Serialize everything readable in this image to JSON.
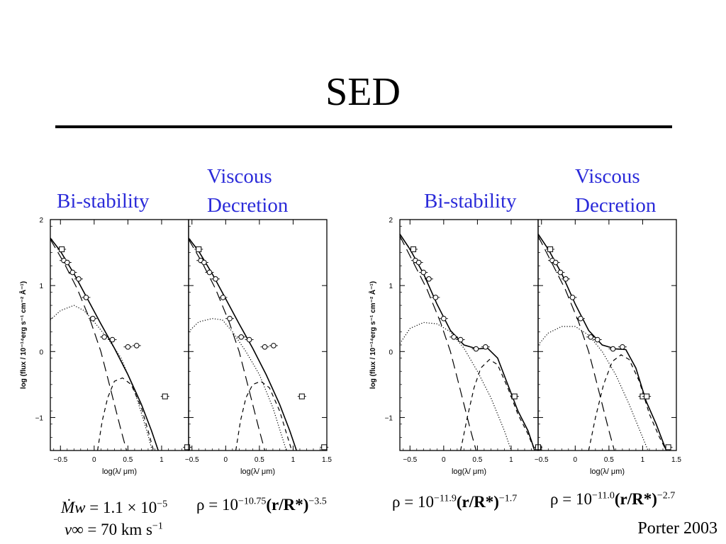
{
  "slide": {
    "title": "SED",
    "credit": "Porter 2003"
  },
  "labels": {
    "left_bistab": "Bi-stability",
    "left_visc_1": "Viscous",
    "left_visc_2": "Decretion",
    "right_bistab": "Bi-stability",
    "right_visc_1": "Viscous",
    "right_visc_2": "Decretion"
  },
  "formulas": {
    "mdot_lhs": "Ṁw",
    "mdot_rhs": "= 1.1 × 10",
    "mdot_exp": "−5",
    "vinf_lhs": "v∞",
    "vinf_rhs": "= 70 km s",
    "vinf_exp": "−1",
    "rho1_a": "ρ = 10",
    "rho1_exp1": "−10.75",
    "rho1_b": "(r/R*)",
    "rho1_exp2": "−3.5",
    "rho2_a": "ρ = 10",
    "rho2_exp1": "−11.9",
    "rho2_b": "(r/R*)",
    "rho2_exp2": "−1.7",
    "rho3_a": "ρ = 10",
    "rho3_exp1": "−11.0",
    "rho3_b": "(r/R*)",
    "rho3_exp2": "−2.7"
  },
  "chart_data": [
    {
      "type": "line",
      "panel": "left figure, left panel",
      "xlabel": "log(λ/ μm)",
      "ylabel": "log (flux / 10⁻¹⁴erg s⁻¹ cm⁻² Å⁻¹)",
      "xlim": [
        -0.65,
        1.4
      ],
      "ylim": [
        -1.5,
        2
      ],
      "xticks": [
        "−0.5",
        "0",
        "0.5",
        "1",
        "1.5"
      ],
      "yticks": [
        "2",
        "1",
        "0",
        "−1"
      ],
      "points": [
        [
          -0.48,
          1.55
        ],
        [
          -0.45,
          1.38
        ],
        [
          -0.4,
          1.35
        ],
        [
          -0.32,
          1.2
        ],
        [
          -0.23,
          1.1
        ],
        [
          -0.12,
          0.82
        ],
        [
          -0.02,
          0.5
        ],
        [
          0.15,
          0.22
        ],
        [
          0.27,
          0.18
        ],
        [
          0.5,
          0.07
        ],
        [
          0.63,
          0.09
        ],
        [
          1.05,
          -0.68
        ],
        [
          1.38,
          -1.45
        ]
      ],
      "series": [
        {
          "style": "solid",
          "values": [
            [
              -0.65,
              1.72
            ],
            [
              -0.5,
              1.52
            ],
            [
              -0.3,
              1.18
            ],
            [
              -0.1,
              0.8
            ],
            [
              0.1,
              0.42
            ],
            [
              0.3,
              0.05
            ],
            [
              0.5,
              -0.35
            ],
            [
              0.7,
              -0.8
            ],
            [
              0.85,
              -1.2
            ],
            [
              0.95,
              -1.5
            ]
          ]
        },
        {
          "style": "long-dash",
          "values": [
            [
              -0.65,
              1.7
            ],
            [
              -0.45,
              1.35
            ],
            [
              -0.25,
              0.95
            ],
            [
              -0.05,
              0.45
            ],
            [
              0.1,
              0
            ],
            [
              0.2,
              -0.4
            ],
            [
              0.3,
              -0.8
            ],
            [
              0.4,
              -1.2
            ],
            [
              0.48,
              -1.5
            ]
          ]
        },
        {
          "style": "dotted",
          "values": [
            [
              -0.65,
              0.48
            ],
            [
              -0.5,
              0.62
            ],
            [
              -0.3,
              0.7
            ],
            [
              -0.15,
              0.62
            ],
            [
              0,
              0.45
            ],
            [
              0.2,
              0.2
            ],
            [
              0.4,
              -0.1
            ],
            [
              0.6,
              -0.6
            ],
            [
              0.78,
              -1.2
            ],
            [
              0.86,
              -1.5
            ]
          ]
        },
        {
          "style": "short-dash",
          "values": [
            [
              0.05,
              -1.5
            ],
            [
              0.12,
              -1.05
            ],
            [
              0.2,
              -0.7
            ],
            [
              0.3,
              -0.45
            ],
            [
              0.42,
              -0.4
            ],
            [
              0.55,
              -0.5
            ],
            [
              0.7,
              -0.85
            ],
            [
              0.8,
              -1.2
            ],
            [
              0.88,
              -1.5
            ]
          ]
        }
      ]
    },
    {
      "type": "line",
      "panel": "left figure, right panel",
      "xlabel": "log(λ/ μm)",
      "xlim": [
        -0.55,
        1.5
      ],
      "ylim": [
        -1.5,
        2
      ],
      "xticks": [
        "−0.5",
        "0",
        "0.5",
        "1",
        "1.5"
      ],
      "points": [
        [
          -0.4,
          1.55
        ],
        [
          -0.37,
          1.38
        ],
        [
          -0.32,
          1.35
        ],
        [
          -0.24,
          1.2
        ],
        [
          -0.15,
          1.1
        ],
        [
          -0.04,
          0.82
        ],
        [
          0.06,
          0.5
        ],
        [
          0.23,
          0.22
        ],
        [
          0.35,
          0.18
        ],
        [
          0.58,
          0.07
        ],
        [
          0.71,
          0.09
        ],
        [
          1.13,
          -0.68
        ],
        [
          1.46,
          -1.45
        ]
      ],
      "series": [
        {
          "style": "solid",
          "values": [
            [
              -0.55,
              1.72
            ],
            [
              -0.4,
              1.52
            ],
            [
              -0.2,
              1.18
            ],
            [
              0,
              0.8
            ],
            [
              0.2,
              0.42
            ],
            [
              0.4,
              0.05
            ],
            [
              0.6,
              -0.35
            ],
            [
              0.8,
              -0.8
            ],
            [
              0.95,
              -1.2
            ],
            [
              1.05,
              -1.5
            ]
          ]
        },
        {
          "style": "long-dash",
          "values": [
            [
              -0.55,
              1.7
            ],
            [
              -0.35,
              1.35
            ],
            [
              -0.15,
              0.95
            ],
            [
              0.05,
              0.45
            ],
            [
              0.2,
              0
            ],
            [
              0.3,
              -0.4
            ],
            [
              0.4,
              -0.8
            ],
            [
              0.5,
              -1.2
            ],
            [
              0.58,
              -1.5
            ]
          ]
        },
        {
          "style": "dotted",
          "values": [
            [
              -0.55,
              0.3
            ],
            [
              -0.4,
              0.45
            ],
            [
              -0.2,
              0.5
            ],
            [
              -0.05,
              0.48
            ],
            [
              0.1,
              0.3
            ],
            [
              0.3,
              0
            ],
            [
              0.5,
              -0.35
            ],
            [
              0.7,
              -0.85
            ],
            [
              0.9,
              -1.5
            ]
          ]
        },
        {
          "style": "short-dash",
          "values": [
            [
              0.15,
              -1.5
            ],
            [
              0.22,
              -1.05
            ],
            [
              0.3,
              -0.7
            ],
            [
              0.4,
              -0.5
            ],
            [
              0.52,
              -0.45
            ],
            [
              0.65,
              -0.55
            ],
            [
              0.8,
              -0.9
            ],
            [
              0.92,
              -1.3
            ],
            [
              0.98,
              -1.5
            ]
          ]
        }
      ]
    },
    {
      "type": "line",
      "panel": "right figure, left panel",
      "xlabel": "log(λ/ μm)",
      "ylabel": "log (flux / 10⁻¹⁴erg s⁻¹ cm⁻² Å⁻¹)",
      "xlim": [
        -0.65,
        1.4
      ],
      "ylim": [
        -1.5,
        2
      ],
      "xticks": [
        "−0.5",
        "0",
        "0.5",
        "1",
        "1.5"
      ],
      "yticks": [
        "2",
        "1",
        "0",
        "−1"
      ],
      "points": [
        [
          -0.45,
          1.55
        ],
        [
          -0.42,
          1.38
        ],
        [
          -0.37,
          1.35
        ],
        [
          -0.3,
          1.2
        ],
        [
          -0.22,
          1.1
        ],
        [
          -0.12,
          0.82
        ],
        [
          0,
          0.5
        ],
        [
          0.15,
          0.22
        ],
        [
          0.25,
          0.18
        ],
        [
          0.48,
          0.04
        ],
        [
          0.62,
          0.07
        ],
        [
          1.05,
          -0.68
        ],
        [
          1.4,
          -1.45
        ]
      ],
      "series": [
        {
          "style": "solid",
          "values": [
            [
              -0.65,
              1.78
            ],
            [
              -0.5,
              1.55
            ],
            [
              -0.3,
              1.18
            ],
            [
              -0.1,
              0.72
            ],
            [
              0.1,
              0.32
            ],
            [
              0.3,
              0.1
            ],
            [
              0.5,
              0.04
            ],
            [
              0.65,
              0.05
            ],
            [
              0.8,
              -0.1
            ],
            [
              0.95,
              -0.5
            ],
            [
              1.1,
              -0.9
            ],
            [
              1.25,
              -1.2
            ],
            [
              1.35,
              -1.5
            ]
          ]
        },
        {
          "style": "long-dash",
          "values": [
            [
              -0.65,
              1.75
            ],
            [
              -0.45,
              1.35
            ],
            [
              -0.25,
              0.95
            ],
            [
              -0.05,
              0.45
            ],
            [
              0.1,
              0
            ],
            [
              0.2,
              -0.4
            ],
            [
              0.3,
              -0.8
            ],
            [
              0.4,
              -1.2
            ],
            [
              0.48,
              -1.5
            ]
          ]
        },
        {
          "style": "dotted",
          "values": [
            [
              -0.65,
              0.12
            ],
            [
              -0.5,
              0.35
            ],
            [
              -0.3,
              0.44
            ],
            [
              -0.1,
              0.42
            ],
            [
              0.1,
              0.3
            ],
            [
              0.3,
              0.05
            ],
            [
              0.5,
              -0.3
            ],
            [
              0.7,
              -0.7
            ],
            [
              0.9,
              -1.2
            ],
            [
              1.0,
              -1.5
            ]
          ]
        },
        {
          "style": "short-dash",
          "values": [
            [
              0.25,
              -1.5
            ],
            [
              0.35,
              -1.0
            ],
            [
              0.45,
              -0.55
            ],
            [
              0.55,
              -0.25
            ],
            [
              0.68,
              -0.12
            ],
            [
              0.8,
              -0.2
            ],
            [
              0.95,
              -0.55
            ],
            [
              1.1,
              -0.95
            ],
            [
              1.25,
              -1.25
            ],
            [
              1.35,
              -1.5
            ]
          ]
        }
      ]
    },
    {
      "type": "line",
      "panel": "right figure, right panel",
      "xlabel": "log(λ/ μm)",
      "xlim": [
        -0.55,
        1.5
      ],
      "ylim": [
        -1.5,
        2
      ],
      "xticks": [
        "−0.5",
        "0",
        "0.5",
        "1",
        "1.5"
      ],
      "points": [
        [
          -0.37,
          1.55
        ],
        [
          -0.34,
          1.38
        ],
        [
          -0.29,
          1.35
        ],
        [
          -0.22,
          1.2
        ],
        [
          -0.14,
          1.1
        ],
        [
          -0.04,
          0.82
        ],
        [
          0.08,
          0.5
        ],
        [
          0.23,
          0.22
        ],
        [
          0.33,
          0.18
        ],
        [
          0.56,
          0.04
        ],
        [
          0.7,
          0.07
        ],
        [
          1.0,
          -0.68
        ],
        [
          1.06,
          -0.68
        ],
        [
          1.38,
          -1.45
        ]
      ],
      "series": [
        {
          "style": "solid",
          "values": [
            [
              -0.55,
              1.78
            ],
            [
              -0.4,
              1.55
            ],
            [
              -0.2,
              1.18
            ],
            [
              0,
              0.72
            ],
            [
              0.2,
              0.32
            ],
            [
              0.4,
              0.1
            ],
            [
              0.6,
              0.04
            ],
            [
              0.75,
              0.03
            ],
            [
              0.9,
              -0.25
            ],
            [
              1.05,
              -0.75
            ],
            [
              1.2,
              -1.1
            ],
            [
              1.35,
              -1.5
            ]
          ]
        },
        {
          "style": "long-dash",
          "values": [
            [
              -0.55,
              1.75
            ],
            [
              -0.35,
              1.35
            ],
            [
              -0.15,
              0.95
            ],
            [
              0.05,
              0.45
            ],
            [
              0.2,
              0
            ],
            [
              0.3,
              -0.4
            ],
            [
              0.4,
              -0.8
            ],
            [
              0.5,
              -1.2
            ],
            [
              0.58,
              -1.5
            ]
          ]
        },
        {
          "style": "dotted",
          "values": [
            [
              -0.55,
              0.1
            ],
            [
              -0.4,
              0.28
            ],
            [
              -0.2,
              0.38
            ],
            [
              0,
              0.38
            ],
            [
              0.2,
              0.25
            ],
            [
              0.4,
              0
            ],
            [
              0.6,
              -0.35
            ],
            [
              0.8,
              -0.8
            ],
            [
              1.0,
              -1.3
            ],
            [
              1.08,
              -1.5
            ]
          ]
        },
        {
          "style": "short-dash",
          "values": [
            [
              0.2,
              -1.5
            ],
            [
              0.3,
              -1.0
            ],
            [
              0.42,
              -0.5
            ],
            [
              0.55,
              -0.15
            ],
            [
              0.68,
              -0.05
            ],
            [
              0.8,
              -0.12
            ],
            [
              0.95,
              -0.45
            ],
            [
              1.1,
              -0.95
            ],
            [
              1.25,
              -1.3
            ],
            [
              1.35,
              -1.5
            ]
          ]
        }
      ]
    }
  ]
}
